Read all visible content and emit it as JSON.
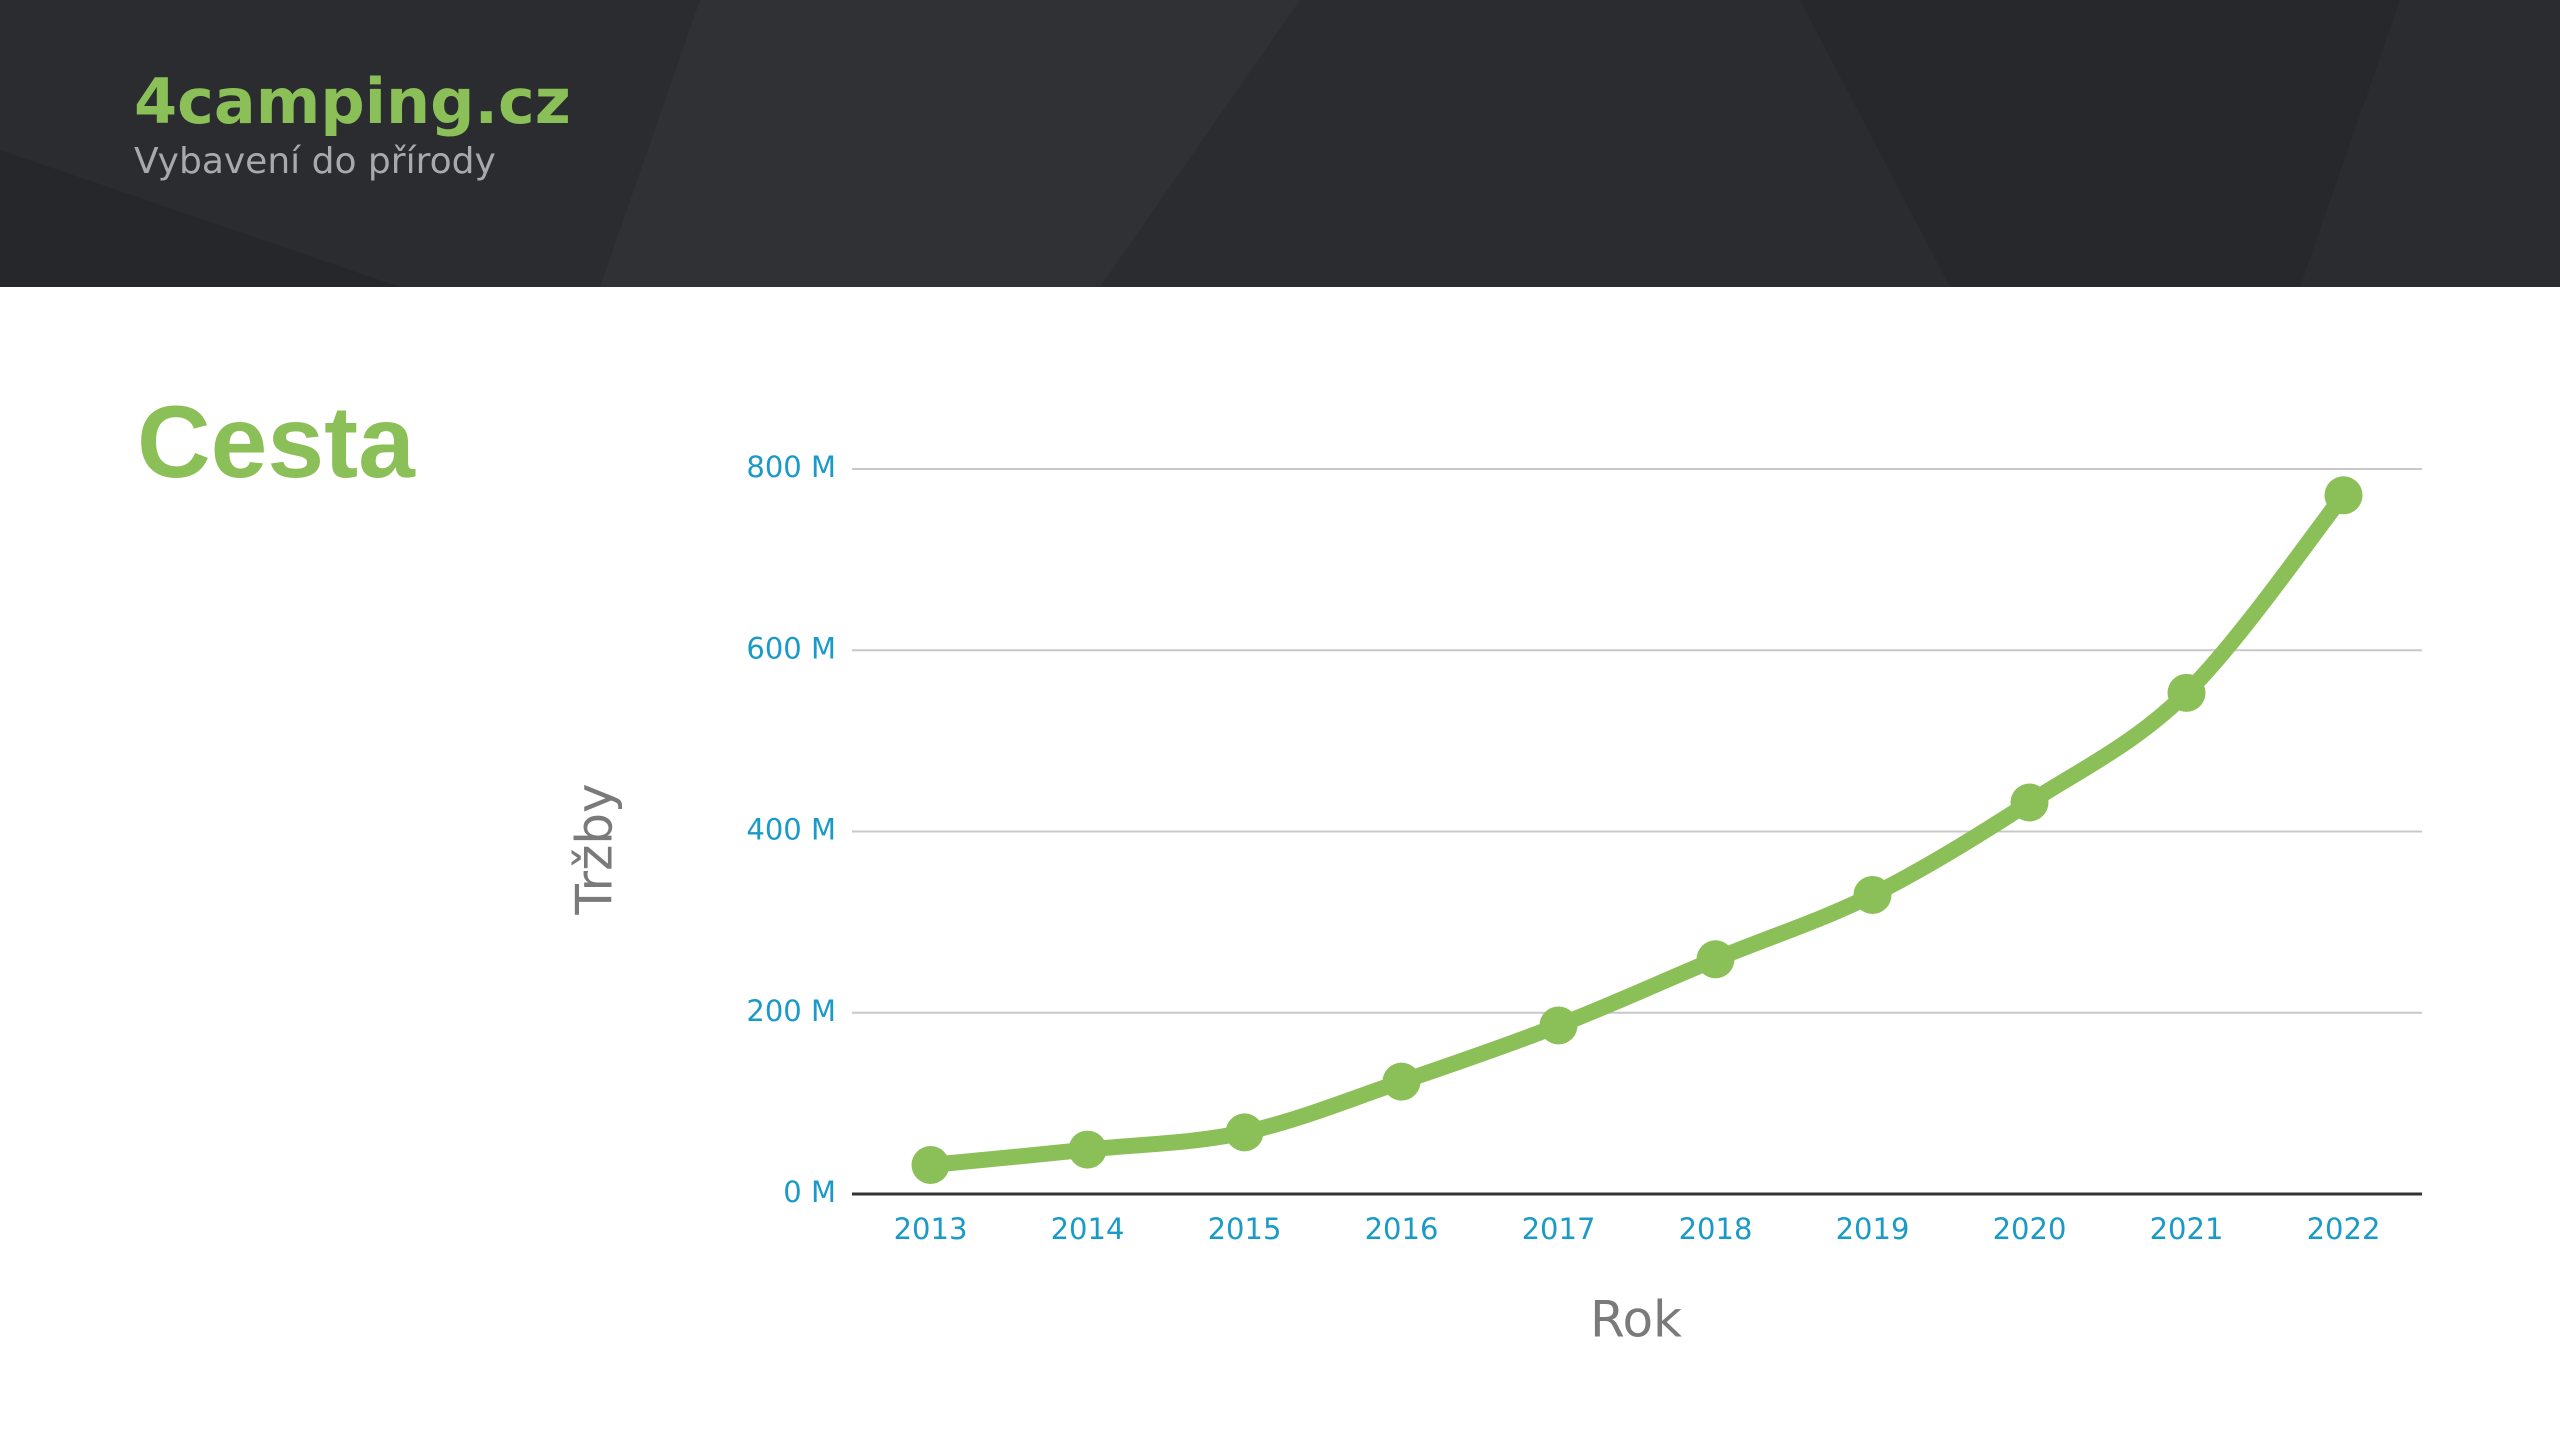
{
  "header": {
    "logo": "4camping.cz",
    "tagline": "Vybavení do přírody"
  },
  "chart_data": {
    "type": "line",
    "title": "Cesta",
    "x_label": "Rok",
    "y_label": "Tržby",
    "categories": [
      "2013",
      "2014",
      "2015",
      "2016",
      "2017",
      "2018",
      "2019",
      "2020",
      "2021",
      "2022"
    ],
    "series": [
      {
        "name": "Tržby",
        "color": "#8bbf57",
        "values": [
          32000000,
          49000000,
          68000000,
          124000000,
          186000000,
          259000000,
          330000000,
          432000000,
          553000000,
          771000000
        ]
      }
    ],
    "ylim": [
      0,
      800000000
    ],
    "yticks": [
      {
        "value": 0,
        "label": "0 M"
      },
      {
        "value": 200000000,
        "label": "200 M"
      },
      {
        "value": 400000000,
        "label": "400 M"
      },
      {
        "value": 600000000,
        "label": "600 M"
      },
      {
        "value": 800000000,
        "label": "800 M"
      }
    ],
    "grid": true,
    "smooth": true
  }
}
